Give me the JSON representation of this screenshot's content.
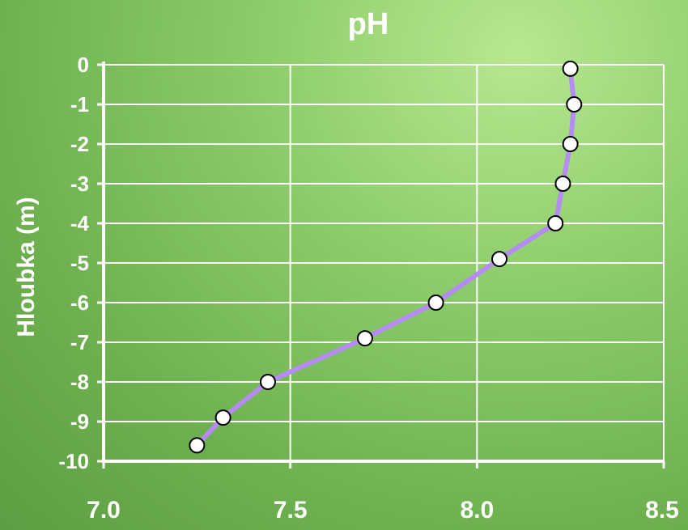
{
  "chart_data": {
    "type": "line",
    "title": "pH",
    "y_label": "Hloubka  (m)",
    "xlim": [
      7.0,
      8.5
    ],
    "ylim": [
      -10,
      0
    ],
    "xticks": [
      {
        "value": 7.0,
        "label": "7.0"
      },
      7.5,
      {
        "value": 8.0,
        "label": "8.0"
      },
      8.5
    ],
    "yticks": [
      0,
      -1,
      -2,
      -3,
      -4,
      -5,
      -6,
      -7,
      -8,
      -9,
      -10
    ],
    "grid": true,
    "series": [
      {
        "color": "#b58cf2",
        "x": [
          8.25,
          8.26,
          8.25,
          8.23,
          8.21,
          8.06,
          7.89,
          7.7,
          7.44,
          7.32,
          7.25
        ],
        "values": [
          -0.1,
          -1,
          -2,
          -3,
          -4,
          -4.9,
          -6,
          -6.9,
          -8,
          -8.9,
          -9.6
        ]
      }
    ]
  }
}
